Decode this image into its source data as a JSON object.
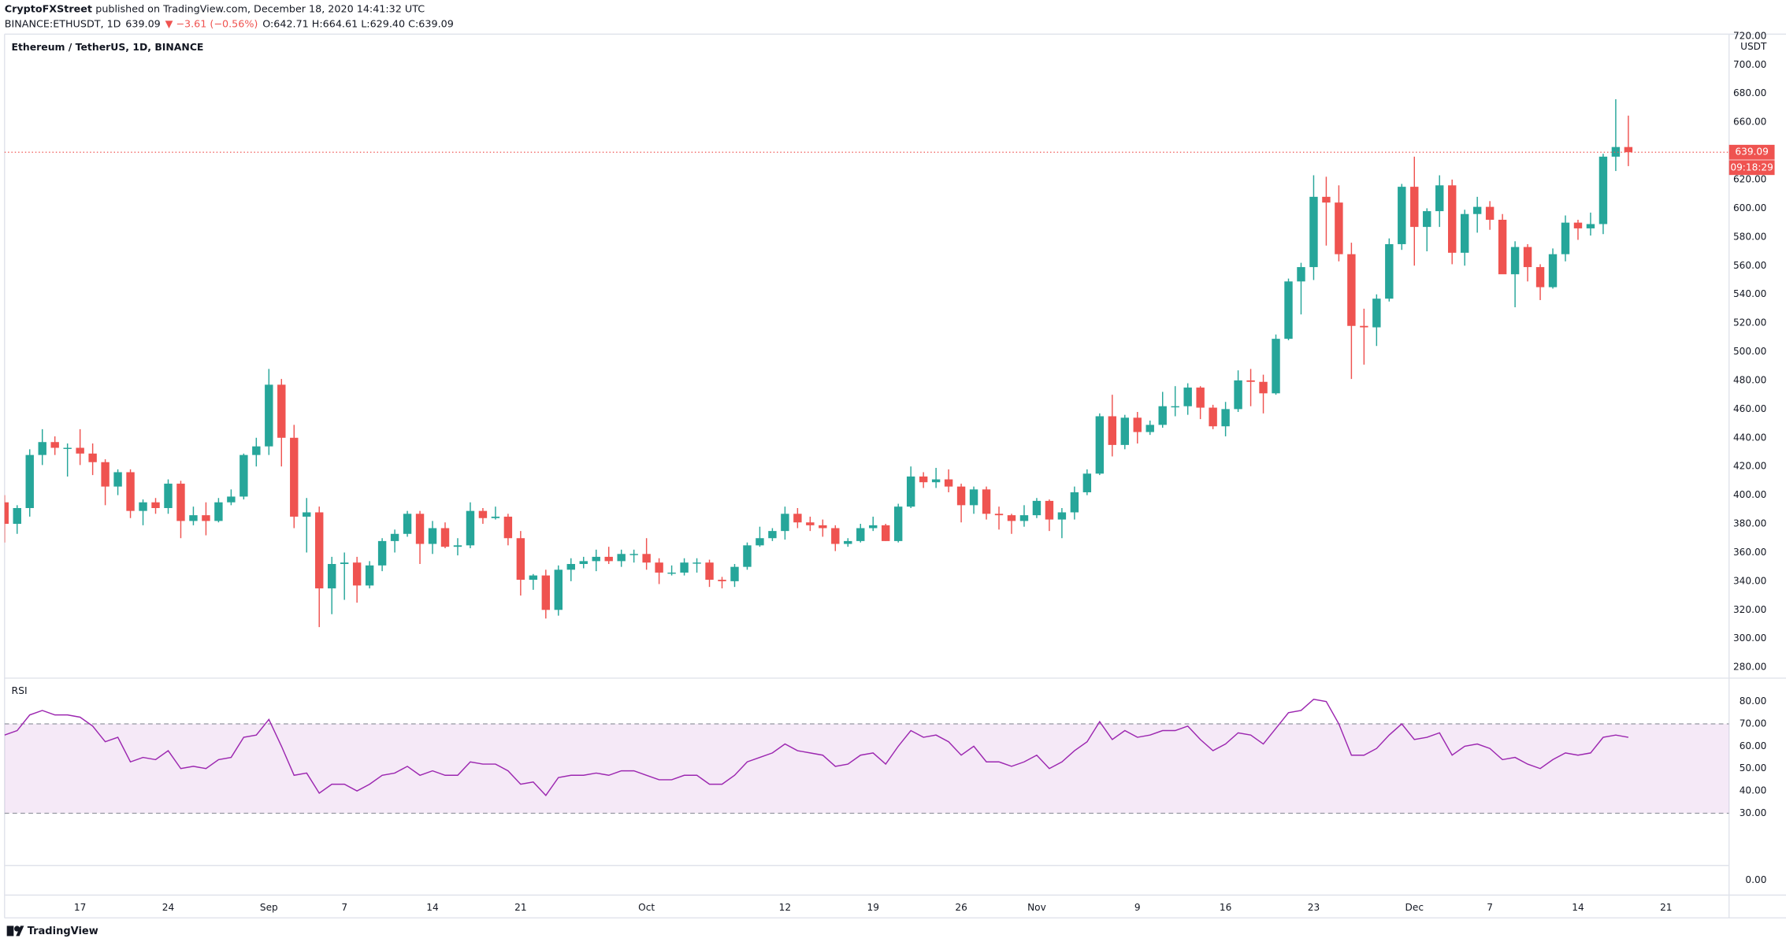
{
  "header": {
    "publisher": "CryptoFXStreet",
    "published": "published on TradingView.com, December 18, 2020 14:41:32 UTC",
    "symbol": "BINANCE:ETHUSDT, 1D",
    "price": "639.09",
    "change": "▼ −3.61 (−0.56%)",
    "ohlc": "O:642.71 H:664.61 L:629.40 C:639.09"
  },
  "footer": {
    "brand": "TradingView"
  },
  "chart_data": [
    {
      "type": "candlestick",
      "title": "Ethereum / TetherUS, 1D, BINANCE",
      "unit": "USDT",
      "countdown": "09:18:29",
      "up_color": "#26a69a",
      "down_color": "#ef5350",
      "grid": false,
      "x": [
        "2020-08-11",
        "2020-08-12",
        "2020-08-13",
        "2020-08-14",
        "2020-08-15",
        "2020-08-16",
        "2020-08-17",
        "2020-08-18",
        "2020-08-19",
        "2020-08-20",
        "2020-08-21",
        "2020-08-22",
        "2020-08-23",
        "2020-08-24",
        "2020-08-25",
        "2020-08-26",
        "2020-08-27",
        "2020-08-28",
        "2020-08-29",
        "2020-08-30",
        "2020-08-31",
        "2020-09-01",
        "2020-09-02",
        "2020-09-03",
        "2020-09-04",
        "2020-09-05",
        "2020-09-06",
        "2020-09-07",
        "2020-09-08",
        "2020-09-09",
        "2020-09-10",
        "2020-09-11",
        "2020-09-12",
        "2020-09-13",
        "2020-09-14",
        "2020-09-15",
        "2020-09-16",
        "2020-09-17",
        "2020-09-18",
        "2020-09-19",
        "2020-09-20",
        "2020-09-21",
        "2020-09-22",
        "2020-09-23",
        "2020-09-24",
        "2020-09-25",
        "2020-09-26",
        "2020-09-27",
        "2020-09-28",
        "2020-09-29",
        "2020-09-30",
        "2020-10-01",
        "2020-10-02",
        "2020-10-03",
        "2020-10-04",
        "2020-10-05",
        "2020-10-06",
        "2020-10-07",
        "2020-10-08",
        "2020-10-09",
        "2020-10-10",
        "2020-10-11",
        "2020-10-12",
        "2020-10-13",
        "2020-10-14",
        "2020-10-15",
        "2020-10-16",
        "2020-10-17",
        "2020-10-18",
        "2020-10-19",
        "2020-10-20",
        "2020-10-21",
        "2020-10-22",
        "2020-10-23",
        "2020-10-24",
        "2020-10-25",
        "2020-10-26",
        "2020-10-27",
        "2020-10-28",
        "2020-10-29",
        "2020-10-30",
        "2020-10-31",
        "2020-11-01",
        "2020-11-02",
        "2020-11-03",
        "2020-11-04",
        "2020-11-05",
        "2020-11-06",
        "2020-11-07",
        "2020-11-08",
        "2020-11-09",
        "2020-11-10",
        "2020-11-11",
        "2020-11-12",
        "2020-11-13",
        "2020-11-14",
        "2020-11-15",
        "2020-11-16",
        "2020-11-17",
        "2020-11-18",
        "2020-11-19",
        "2020-11-20",
        "2020-11-21",
        "2020-11-22",
        "2020-11-23",
        "2020-11-24",
        "2020-11-25",
        "2020-11-26",
        "2020-11-27",
        "2020-11-28",
        "2020-11-29",
        "2020-11-30",
        "2020-12-01",
        "2020-12-02",
        "2020-12-03",
        "2020-12-04",
        "2020-12-05",
        "2020-12-06",
        "2020-12-07",
        "2020-12-08",
        "2020-12-09",
        "2020-12-10",
        "2020-12-11",
        "2020-12-12",
        "2020-12-13",
        "2020-12-14",
        "2020-12-15",
        "2020-12-16",
        "2020-12-17",
        "2020-12-18"
      ],
      "open": [
        395,
        380,
        391,
        428,
        437,
        433,
        433,
        429,
        423,
        406,
        416,
        389,
        395,
        391,
        408,
        382,
        386,
        382,
        395,
        399,
        428,
        434,
        477,
        440,
        385,
        388,
        335,
        352,
        353,
        337,
        351,
        368,
        373,
        387,
        366,
        377,
        364,
        365,
        389,
        384,
        385,
        370,
        341,
        344,
        320,
        348,
        352,
        354,
        357,
        354,
        359,
        359,
        353,
        346,
        346,
        353,
        353,
        341,
        340,
        350,
        365,
        370,
        375,
        387,
        381,
        379,
        377,
        366,
        368,
        377,
        379,
        368,
        392,
        413,
        409,
        411,
        406,
        393,
        404,
        387,
        386,
        382,
        386,
        396,
        383,
        388,
        402,
        415,
        455,
        435,
        454,
        444,
        449,
        462,
        462,
        475,
        461,
        448,
        460,
        480,
        479,
        471,
        509,
        549,
        559,
        608,
        604,
        568,
        518,
        517,
        537,
        575,
        615,
        587,
        598,
        616,
        569,
        596,
        601,
        592,
        554,
        573,
        559,
        545,
        568,
        590,
        586,
        589,
        636,
        642.71
      ],
      "high": [
        400,
        393,
        432,
        446,
        441,
        436,
        446,
        436,
        425,
        418,
        418,
        397,
        398,
        411,
        410,
        392,
        395,
        398,
        404,
        429,
        440,
        488,
        481,
        449,
        398,
        392,
        357,
        360,
        357,
        354,
        370,
        376,
        389,
        389,
        382,
        381,
        370,
        395,
        391,
        392,
        387,
        375,
        345,
        348,
        351,
        356,
        357,
        362,
        364,
        362,
        362,
        370,
        356,
        351,
        356,
        356,
        355,
        343,
        352,
        367,
        378,
        377,
        392,
        391,
        385,
        383,
        379,
        370,
        380,
        385,
        380,
        394,
        420,
        416,
        419,
        418,
        408,
        406,
        406,
        392,
        387,
        393,
        398,
        397,
        391,
        406,
        418,
        457,
        470,
        456,
        458,
        452,
        472,
        476,
        478,
        476,
        463,
        465,
        487,
        488,
        484,
        512,
        551,
        562,
        623,
        622,
        616,
        576,
        530,
        540,
        579,
        617,
        636,
        600,
        623,
        620,
        599,
        608,
        605,
        596,
        577,
        575,
        561,
        572,
        595,
        592,
        597,
        638,
        676,
        664.61
      ],
      "low": [
        367,
        373,
        385,
        421,
        428,
        413,
        421,
        414,
        393,
        400,
        384,
        379,
        387,
        387,
        370,
        379,
        372,
        381,
        393,
        397,
        420,
        428,
        420,
        377,
        360,
        308,
        317,
        327,
        325,
        335,
        347,
        360,
        371,
        352,
        359,
        363,
        358,
        363,
        380,
        383,
        365,
        330,
        334,
        314,
        316,
        340,
        349,
        347,
        352,
        350,
        353,
        348,
        338,
        344,
        344,
        346,
        336,
        335,
        336,
        348,
        364,
        368,
        369,
        377,
        375,
        371,
        361,
        364,
        367,
        375,
        368,
        367,
        391,
        405,
        405,
        402,
        381,
        387,
        383,
        376,
        373,
        378,
        384,
        375,
        370,
        383,
        400,
        414,
        427,
        432,
        436,
        442,
        447,
        455,
        456,
        453,
        446,
        441,
        458,
        462,
        457,
        470,
        508,
        526,
        550,
        574,
        563,
        481,
        491,
        504,
        535,
        571,
        560,
        570,
        587,
        561,
        560,
        583,
        585,
        556,
        531,
        549,
        536,
        544,
        563,
        578,
        581,
        582,
        626,
        629.4
      ],
      "close": [
        380,
        391,
        428,
        437,
        433,
        433,
        429,
        423,
        406,
        416,
        389,
        395,
        391,
        408,
        382,
        386,
        382,
        395,
        399,
        428,
        434,
        477,
        440,
        385,
        388,
        335,
        352,
        353,
        337,
        351,
        368,
        373,
        387,
        366,
        377,
        364,
        365,
        389,
        384,
        385,
        370,
        341,
        344,
        320,
        348,
        352,
        354,
        357,
        354,
        359,
        359,
        353,
        346,
        346,
        353,
        353,
        341,
        340,
        350,
        365,
        370,
        375,
        387,
        381,
        379,
        377,
        366,
        368,
        377,
        379,
        368,
        392,
        413,
        409,
        411,
        406,
        393,
        404,
        387,
        386,
        382,
        386,
        396,
        383,
        388,
        402,
        415,
        455,
        435,
        454,
        444,
        449,
        462,
        462,
        475,
        461,
        448,
        460,
        480,
        479,
        471,
        509,
        549,
        559,
        608,
        604,
        568,
        518,
        517,
        537,
        575,
        615,
        587,
        598,
        616,
        569,
        596,
        601,
        592,
        554,
        573,
        559,
        545,
        568,
        590,
        586,
        589,
        636,
        642.71,
        639.09
      ],
      "xlim": [
        "2020-08-11",
        "2020-12-26"
      ],
      "xticks": [
        {
          "value": "2020-08-17",
          "label": "17"
        },
        {
          "value": "2020-08-24",
          "label": "24"
        },
        {
          "value": "2020-09-01",
          "label": "Sep"
        },
        {
          "value": "2020-09-07",
          "label": "7"
        },
        {
          "value": "2020-09-14",
          "label": "14"
        },
        {
          "value": "2020-09-21",
          "label": "21"
        },
        {
          "value": "2020-10-01",
          "label": "Oct"
        },
        {
          "value": "2020-10-12",
          "label": "12"
        },
        {
          "value": "2020-10-19",
          "label": "19"
        },
        {
          "value": "2020-10-26",
          "label": "26"
        },
        {
          "value": "2020-11-01",
          "label": "Nov"
        },
        {
          "value": "2020-11-09",
          "label": "9"
        },
        {
          "value": "2020-11-16",
          "label": "16"
        },
        {
          "value": "2020-11-23",
          "label": "23"
        },
        {
          "value": "2020-12-01",
          "label": "Dec"
        },
        {
          "value": "2020-12-07",
          "label": "7"
        },
        {
          "value": "2020-12-14",
          "label": "14"
        },
        {
          "value": "2020-12-21",
          "label": "21"
        }
      ],
      "ylim": [
        272.8,
        721.4
      ],
      "yticks": [
        {
          "value": 280,
          "label": "280.00"
        },
        {
          "value": 300,
          "label": "300.00"
        },
        {
          "value": 320,
          "label": "320.00"
        },
        {
          "value": 340,
          "label": "340.00"
        },
        {
          "value": 360,
          "label": "360.00"
        },
        {
          "value": 380,
          "label": "380.00"
        },
        {
          "value": 400,
          "label": "400.00"
        },
        {
          "value": 420,
          "label": "420.00"
        },
        {
          "value": 440,
          "label": "440.00"
        },
        {
          "value": 460,
          "label": "460.00"
        },
        {
          "value": 480,
          "label": "480.00"
        },
        {
          "value": 500,
          "label": "500.00"
        },
        {
          "value": 520,
          "label": "520.00"
        },
        {
          "value": 540,
          "label": "540.00"
        },
        {
          "value": 560,
          "label": "560.00"
        },
        {
          "value": 580,
          "label": "580.00"
        },
        {
          "value": 600,
          "label": "600.00"
        },
        {
          "value": 620,
          "label": "620.00"
        },
        {
          "value": 640,
          "label": "640.00"
        },
        {
          "value": 660,
          "label": "660.00"
        },
        {
          "value": 680,
          "label": "680.00"
        },
        {
          "value": 700,
          "label": "700.00"
        },
        {
          "value": 720,
          "label": "720.00"
        }
      ]
    },
    {
      "type": "line",
      "title": "RSI",
      "color": "#9c27b0",
      "band_color": "#9c27b0",
      "bands": [
        30,
        70
      ],
      "x": [
        "2020-08-11",
        "2020-08-12",
        "2020-08-13",
        "2020-08-14",
        "2020-08-15",
        "2020-08-16",
        "2020-08-17",
        "2020-08-18",
        "2020-08-19",
        "2020-08-20",
        "2020-08-21",
        "2020-08-22",
        "2020-08-23",
        "2020-08-24",
        "2020-08-25",
        "2020-08-26",
        "2020-08-27",
        "2020-08-28",
        "2020-08-29",
        "2020-08-30",
        "2020-08-31",
        "2020-09-01",
        "2020-09-02",
        "2020-09-03",
        "2020-09-04",
        "2020-09-05",
        "2020-09-06",
        "2020-09-07",
        "2020-09-08",
        "2020-09-09",
        "2020-09-10",
        "2020-09-11",
        "2020-09-12",
        "2020-09-13",
        "2020-09-14",
        "2020-09-15",
        "2020-09-16",
        "2020-09-17",
        "2020-09-18",
        "2020-09-19",
        "2020-09-20",
        "2020-09-21",
        "2020-09-22",
        "2020-09-23",
        "2020-09-24",
        "2020-09-25",
        "2020-09-26",
        "2020-09-27",
        "2020-09-28",
        "2020-09-29",
        "2020-09-30",
        "2020-10-01",
        "2020-10-02",
        "2020-10-03",
        "2020-10-04",
        "2020-10-05",
        "2020-10-06",
        "2020-10-07",
        "2020-10-08",
        "2020-10-09",
        "2020-10-10",
        "2020-10-11",
        "2020-10-12",
        "2020-10-13",
        "2020-10-14",
        "2020-10-15",
        "2020-10-16",
        "2020-10-17",
        "2020-10-18",
        "2020-10-19",
        "2020-10-20",
        "2020-10-21",
        "2020-10-22",
        "2020-10-23",
        "2020-10-24",
        "2020-10-25",
        "2020-10-26",
        "2020-10-27",
        "2020-10-28",
        "2020-10-29",
        "2020-10-30",
        "2020-10-31",
        "2020-11-01",
        "2020-11-02",
        "2020-11-03",
        "2020-11-04",
        "2020-11-05",
        "2020-11-06",
        "2020-11-07",
        "2020-11-08",
        "2020-11-09",
        "2020-11-10",
        "2020-11-11",
        "2020-11-12",
        "2020-11-13",
        "2020-11-14",
        "2020-11-15",
        "2020-11-16",
        "2020-11-17",
        "2020-11-18",
        "2020-11-19",
        "2020-11-20",
        "2020-11-21",
        "2020-11-22",
        "2020-11-23",
        "2020-11-24",
        "2020-11-25",
        "2020-11-26",
        "2020-11-27",
        "2020-11-28",
        "2020-11-29",
        "2020-11-30",
        "2020-12-01",
        "2020-12-02",
        "2020-12-03",
        "2020-12-04",
        "2020-12-05",
        "2020-12-06",
        "2020-12-07",
        "2020-12-08",
        "2020-12-09",
        "2020-12-10",
        "2020-12-11",
        "2020-12-12",
        "2020-12-13",
        "2020-12-14",
        "2020-12-15",
        "2020-12-16",
        "2020-12-17",
        "2020-12-18"
      ],
      "values": [
        65,
        67,
        74,
        76,
        74,
        74,
        73,
        69,
        62,
        64,
        53,
        55,
        54,
        58,
        50,
        51,
        50,
        54,
        55,
        64,
        65,
        72,
        60,
        47,
        48,
        39,
        43,
        43,
        40,
        43,
        47,
        48,
        51,
        47,
        49,
        47,
        47,
        53,
        52,
        52,
        49,
        43,
        44,
        38,
        46,
        47,
        47,
        48,
        47,
        49,
        49,
        47,
        45,
        45,
        47,
        47,
        43,
        43,
        47,
        53,
        55,
        57,
        61,
        58,
        57,
        56,
        51,
        52,
        56,
        57,
        52,
        60,
        67,
        64,
        65,
        62,
        56,
        60,
        53,
        53,
        51,
        53,
        56,
        50,
        53,
        58,
        62,
        71,
        63,
        67,
        64,
        65,
        67,
        67,
        69,
        63,
        58,
        61,
        66,
        65,
        61,
        68,
        75,
        76,
        81,
        80,
        70,
        56,
        56,
        59,
        65,
        70,
        63,
        64,
        66,
        56,
        60,
        61,
        59,
        54,
        55,
        52,
        50,
        54,
        57,
        56,
        57,
        64,
        65,
        64
      ],
      "xlim": [
        "2020-08-11",
        "2020-12-26"
      ],
      "ylim": [
        -6.6,
        90.2
      ],
      "yticks": [
        {
          "value": 0,
          "label": "0.00"
        },
        {
          "value": 30,
          "label": "30.00"
        },
        {
          "value": 40,
          "label": "40.00"
        },
        {
          "value": 50,
          "label": "50.00"
        },
        {
          "value": 60,
          "label": "60.00"
        },
        {
          "value": 70,
          "label": "70.00"
        },
        {
          "value": 80,
          "label": "80.00"
        }
      ]
    }
  ]
}
